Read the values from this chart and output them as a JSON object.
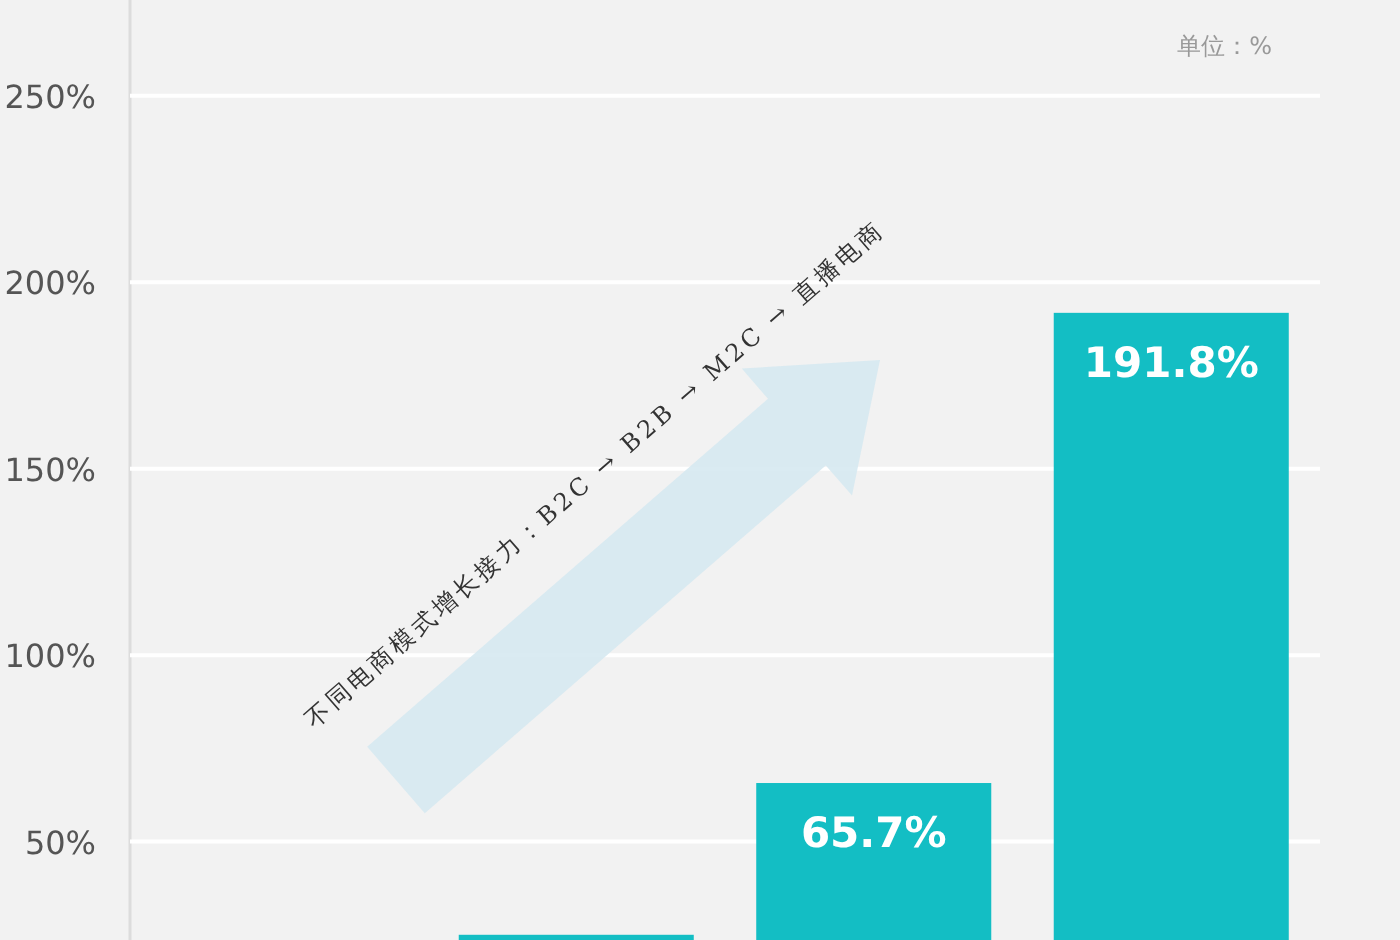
{
  "chart_data": {
    "type": "bar",
    "categories": [
      null,
      null,
      null,
      null
    ],
    "values": [
      null,
      25,
      65.7,
      191.8
    ],
    "value_labels": [
      null,
      null,
      "65.7%",
      "191.8%"
    ],
    "color": "#13bec4",
    "ylim": [
      23.6,
      275.7
    ],
    "yticks": [
      {
        "value": 50,
        "label": "50%"
      },
      {
        "value": 100,
        "label": "100%"
      },
      {
        "value": 150,
        "label": "150%"
      },
      {
        "value": 200,
        "label": "200%"
      },
      {
        "value": 250,
        "label": "250%"
      }
    ],
    "grid": "y",
    "annotations": [
      "单位：%",
      "不同电商模式增长接力：B2C → B2B → M2C → 直播电商"
    ]
  }
}
